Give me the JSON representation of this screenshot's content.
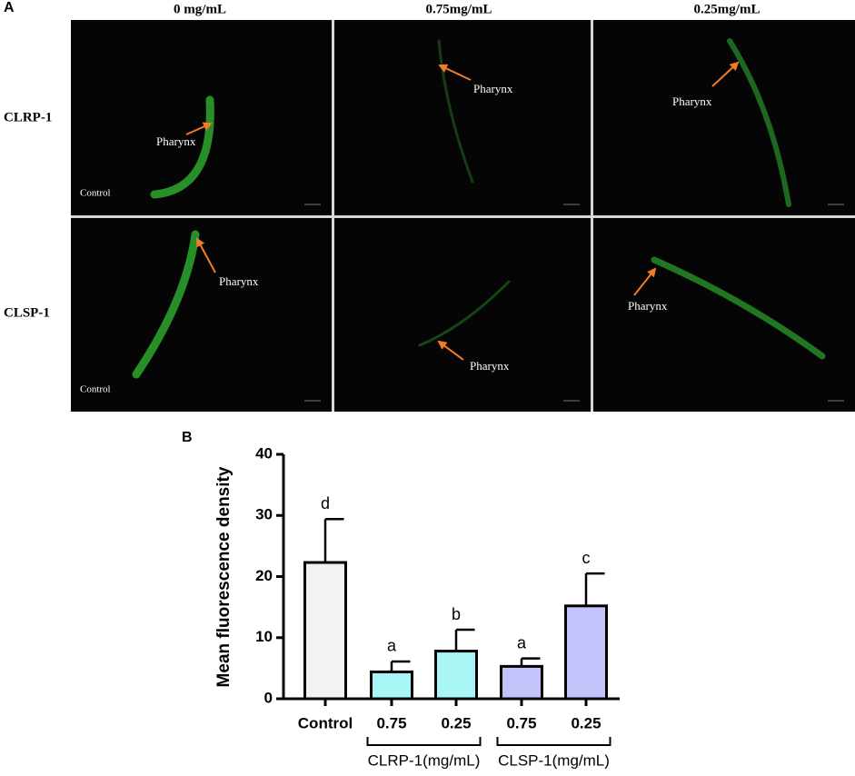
{
  "panel_a": {
    "label": "A",
    "columns": [
      "0 mg/mL",
      "0.75mg/mL",
      "0.25mg/mL"
    ],
    "rows": [
      "CLRP-1",
      "CLSP-1"
    ],
    "images": [
      [
        "Pharynx",
        "Control"
      ],
      [
        "Pharynx"
      ],
      [
        "Pharynx"
      ],
      [
        "Pharynx",
        "Control"
      ],
      [
        "Pharynx"
      ],
      [
        "Pharynx"
      ]
    ]
  },
  "chart_data": {
    "type": "bar",
    "panel_label": "B",
    "ylabel": "Mean fluorescence density",
    "categories": [
      "Control",
      "0.75",
      "0.25",
      "0.75",
      "0.25"
    ],
    "values": [
      22.3,
      4.4,
      7.8,
      5.3,
      15.2
    ],
    "errors": [
      7.1,
      1.7,
      3.5,
      1.3,
      5.3
    ],
    "annotations": [
      "d",
      "a",
      "b",
      "a",
      "c"
    ],
    "colors": [
      "#f2f2f2",
      "#a9f4f4",
      "#a9f4f4",
      "#c3c3fb",
      "#c3c3fb"
    ],
    "groups": [
      "CLRP-1(mg/mL)",
      "CLSP-1(mg/mL)"
    ],
    "ylim": [
      0,
      40
    ],
    "yticks": [
      0,
      10,
      20,
      30,
      40
    ]
  }
}
